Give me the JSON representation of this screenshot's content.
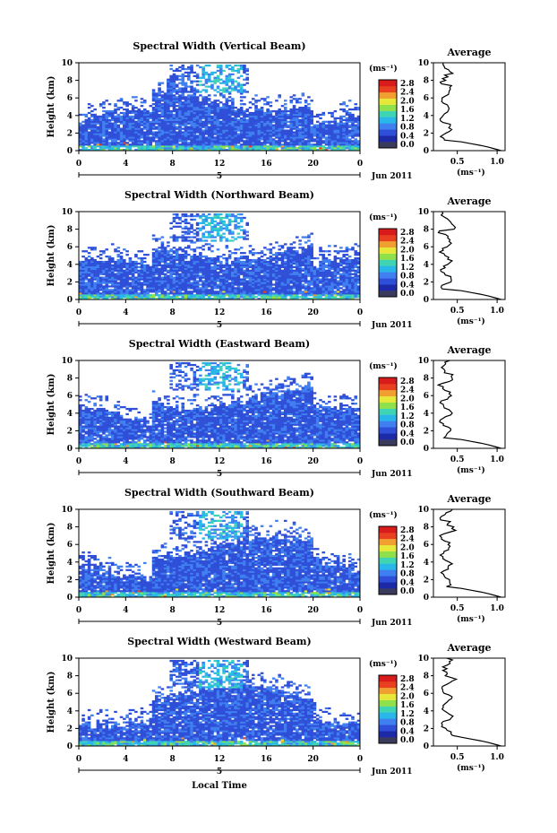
{
  "figure": {
    "xlabel": "Local Time",
    "date_label": "Jun 2011",
    "day_label": "5"
  },
  "chart_data": [
    {
      "type": "heatmap",
      "title": "Spectral Width (Vertical Beam)",
      "xlabel": "",
      "ylabel": "Height (km)",
      "x_ticks": [
        "0",
        "4",
        "8",
        "12",
        "16",
        "20",
        "0"
      ],
      "y_ticks": [
        "0",
        "2",
        "4",
        "6",
        "8",
        "10"
      ],
      "xlim": [
        0,
        24
      ],
      "ylim": [
        0,
        10
      ],
      "colorbar_unit": "(ms⁻¹)",
      "colorbar_ticks": [
        "0.0",
        "0.4",
        "0.8",
        "1.2",
        "1.6",
        "2.0",
        "2.4",
        "2.8"
      ],
      "average": {
        "title": "Average",
        "xlabel": "(ms⁻¹)",
        "x_ticks": [
          "0.5",
          "1.0"
        ],
        "y_ticks": [
          "0",
          "2",
          "4",
          "6",
          "8",
          "10"
        ]
      }
    },
    {
      "type": "heatmap",
      "title": "Spectral Width (Northward Beam)",
      "xlabel": "",
      "ylabel": "Height (km)",
      "x_ticks": [
        "0",
        "4",
        "8",
        "12",
        "16",
        "20",
        "0"
      ],
      "y_ticks": [
        "0",
        "2",
        "4",
        "6",
        "8",
        "10"
      ],
      "xlim": [
        0,
        24
      ],
      "ylim": [
        0,
        10
      ],
      "colorbar_unit": "(ms⁻¹)",
      "colorbar_ticks": [
        "0.0",
        "0.4",
        "0.8",
        "1.2",
        "1.6",
        "2.0",
        "2.4",
        "2.8"
      ],
      "average": {
        "title": "Average",
        "xlabel": "(ms⁻¹)",
        "x_ticks": [
          "0.5",
          "1.0"
        ],
        "y_ticks": [
          "0",
          "2",
          "4",
          "6",
          "8",
          "10"
        ]
      }
    },
    {
      "type": "heatmap",
      "title": "Spectral Width (Eastward Beam)",
      "xlabel": "",
      "ylabel": "Height (km)",
      "x_ticks": [
        "0",
        "4",
        "8",
        "12",
        "16",
        "20",
        "0"
      ],
      "y_ticks": [
        "0",
        "2",
        "4",
        "6",
        "8",
        "10"
      ],
      "xlim": [
        0,
        24
      ],
      "ylim": [
        0,
        10
      ],
      "colorbar_unit": "(ms⁻¹)",
      "colorbar_ticks": [
        "0.0",
        "0.4",
        "0.8",
        "1.2",
        "1.6",
        "2.0",
        "2.4",
        "2.8"
      ],
      "average": {
        "title": "Average",
        "xlabel": "(ms⁻¹)",
        "x_ticks": [
          "0.5",
          "1.0"
        ],
        "y_ticks": [
          "0",
          "2",
          "4",
          "6",
          "8",
          "10"
        ]
      }
    },
    {
      "type": "heatmap",
      "title": "Spectral Width (Southward Beam)",
      "xlabel": "",
      "ylabel": "Height (km)",
      "x_ticks": [
        "0",
        "4",
        "8",
        "12",
        "16",
        "20",
        "0"
      ],
      "y_ticks": [
        "0",
        "2",
        "4",
        "6",
        "8",
        "10"
      ],
      "xlim": [
        0,
        24
      ],
      "ylim": [
        0,
        10
      ],
      "colorbar_unit": "(ms⁻¹)",
      "colorbar_ticks": [
        "0.0",
        "0.4",
        "0.8",
        "1.2",
        "1.6",
        "2.0",
        "2.4",
        "2.8"
      ],
      "average": {
        "title": "Average",
        "xlabel": "(ms⁻¹)",
        "x_ticks": [
          "0.5",
          "1.0"
        ],
        "y_ticks": [
          "0",
          "2",
          "4",
          "6",
          "8",
          "10"
        ]
      }
    },
    {
      "type": "heatmap",
      "title": "Spectral Width (Westward Beam)",
      "xlabel": "Local Time",
      "ylabel": "Height (km)",
      "x_ticks": [
        "0",
        "4",
        "8",
        "12",
        "16",
        "20",
        "0"
      ],
      "y_ticks": [
        "0",
        "2",
        "4",
        "6",
        "8",
        "10"
      ],
      "xlim": [
        0,
        24
      ],
      "ylim": [
        0,
        10
      ],
      "colorbar_unit": "(ms⁻¹)",
      "colorbar_ticks": [
        "0.0",
        "0.4",
        "0.8",
        "1.2",
        "1.6",
        "2.0",
        "2.4",
        "2.8"
      ],
      "average": {
        "title": "Average",
        "xlabel": "(ms⁻¹)",
        "x_ticks": [
          "0.5",
          "1.0"
        ],
        "y_ticks": [
          "0",
          "2",
          "4",
          "6",
          "8",
          "10"
        ]
      }
    }
  ],
  "colorscale": [
    "#3a3a5c",
    "#1c2aa8",
    "#2f4fd8",
    "#3f7ff0",
    "#29b6e8",
    "#3fd4b4",
    "#8fe04a",
    "#e8e83a",
    "#f0a030",
    "#e84020",
    "#d81c1c"
  ]
}
